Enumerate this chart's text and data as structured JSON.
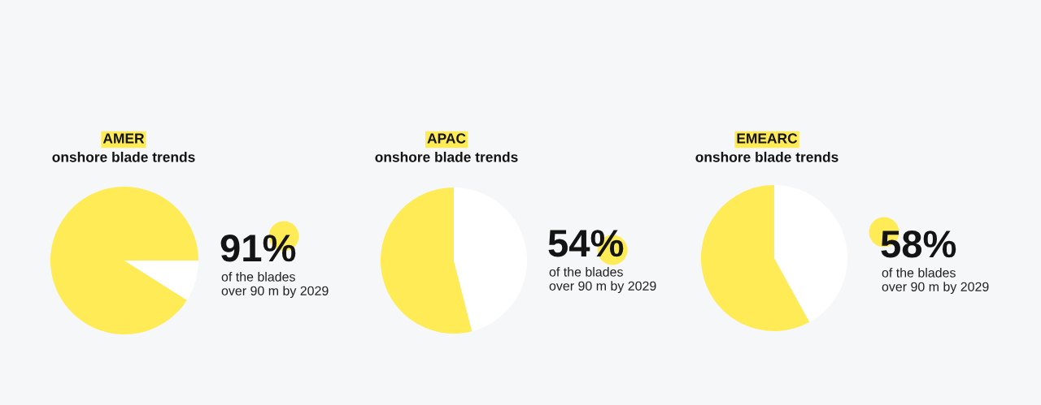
{
  "chart_data": [
    {
      "type": "pie",
      "title": "AMER",
      "subtitle": "onshore blade trends",
      "categories": [
        null,
        null
      ],
      "values": [
        91,
        9
      ],
      "colors": [
        "#ffeb55",
        "#ffffff"
      ],
      "annotations": [
        "91%",
        "of the blades\nover 90 m by 2029"
      ]
    },
    {
      "type": "pie",
      "title": "APAC",
      "subtitle": "onshore blade trends",
      "categories": [
        null,
        null
      ],
      "values": [
        54,
        46
      ],
      "colors": [
        "#ffeb55",
        "#ffffff"
      ],
      "annotations": [
        "54%",
        "of the blades\nover 90 m by 2029"
      ]
    },
    {
      "type": "pie",
      "title": "EMEARC",
      "subtitle": "onshore blade trends",
      "categories": [
        null,
        null
      ],
      "values": [
        58,
        42
      ],
      "colors": [
        "#ffeb55",
        "#ffffff"
      ],
      "annotations": [
        "58%",
        "of the blades\nover 90 m by 2029"
      ]
    }
  ]
}
